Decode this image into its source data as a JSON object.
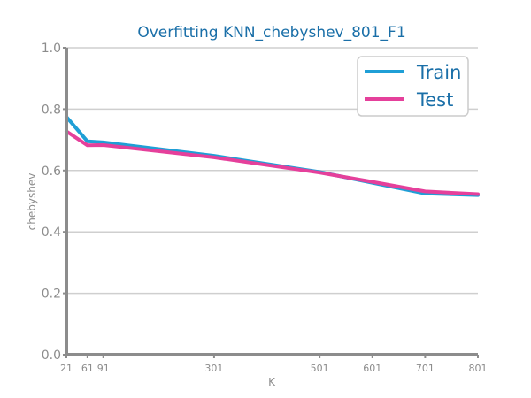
{
  "chart_data": {
    "type": "line",
    "title": "Overfitting KNN_chebyshev_801_F1",
    "xlabel": "K",
    "ylabel": "chebyshev",
    "x": [
      21,
      61,
      91,
      301,
      501,
      601,
      701,
      801
    ],
    "xticks": [
      "21",
      "61",
      "91",
      "301",
      "501",
      "601",
      "701",
      "801"
    ],
    "yticks": [
      "0.0",
      "0.2",
      "0.4",
      "0.6",
      "0.8",
      "1.0"
    ],
    "xlim": [
      21,
      801
    ],
    "ylim": [
      0,
      1
    ],
    "grid": "horizontal",
    "legend_position": "top-right",
    "series": [
      {
        "name": "Train",
        "color": "#1f9fd6",
        "values": [
          0.775,
          0.695,
          0.692,
          0.648,
          0.595,
          0.56,
          0.525,
          0.52
        ]
      },
      {
        "name": "Test",
        "color": "#e5409b",
        "values": [
          0.728,
          0.682,
          0.683,
          0.643,
          0.593,
          0.563,
          0.532,
          0.523
        ]
      }
    ],
    "colors": {
      "title": "#1a6fa8",
      "axis": "#8c8c8c",
      "grid": "#cfcfcf",
      "tick_label": "#8c8c8c"
    }
  }
}
